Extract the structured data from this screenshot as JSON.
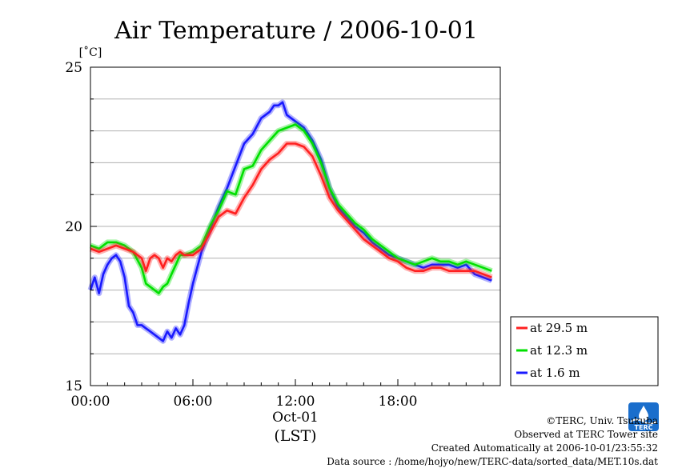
{
  "chart_data": {
    "type": "line",
    "title": "Air Temperature / 2006-10-01",
    "ylabel": "[˚C]",
    "xlabel": "(LST)",
    "date_label": "Oct-01",
    "ylim": [
      15,
      25
    ],
    "xlim_hours": [
      0,
      24
    ],
    "y_ticks": [
      "15",
      "20",
      "25"
    ],
    "x_ticks": [
      {
        "hour": 0,
        "label": "00:00"
      },
      {
        "hour": 6,
        "label": "06:00"
      },
      {
        "hour": 12,
        "label": "12:00"
      },
      {
        "hour": 18,
        "label": "18:00"
      }
    ],
    "grid": true,
    "legend_position": "right-bottom",
    "series": [
      {
        "name": "at 29.5 m",
        "color": "#ff2020",
        "x": [
          0.0,
          0.5,
          1.0,
          1.5,
          2.0,
          2.5,
          3.0,
          3.25,
          3.5,
          3.75,
          4.0,
          4.25,
          4.5,
          4.75,
          5.0,
          5.25,
          5.5,
          6.0,
          6.5,
          7.0,
          7.5,
          8.0,
          8.5,
          9.0,
          9.5,
          10.0,
          10.5,
          11.0,
          11.5,
          12.0,
          12.5,
          13.0,
          13.5,
          14.0,
          14.5,
          15.0,
          15.5,
          16.0,
          16.5,
          17.0,
          17.5,
          18.0,
          18.5,
          19.0,
          19.5,
          20.0,
          20.5,
          21.0,
          21.5,
          22.0,
          22.5,
          23.0,
          23.5
        ],
        "y": [
          19.3,
          19.2,
          19.3,
          19.4,
          19.3,
          19.2,
          19.0,
          18.6,
          19.0,
          19.1,
          19.0,
          18.7,
          19.0,
          18.9,
          19.1,
          19.2,
          19.1,
          19.1,
          19.3,
          19.8,
          20.3,
          20.5,
          20.4,
          20.9,
          21.3,
          21.8,
          22.1,
          22.3,
          22.6,
          22.6,
          22.5,
          22.2,
          21.6,
          20.9,
          20.5,
          20.2,
          19.9,
          19.6,
          19.4,
          19.2,
          19.0,
          18.9,
          18.7,
          18.6,
          18.6,
          18.7,
          18.7,
          18.6,
          18.6,
          18.6,
          18.6,
          18.5,
          18.4
        ]
      },
      {
        "name": "at 12.3 m",
        "color": "#00e000",
        "x": [
          0.0,
          0.5,
          1.0,
          1.5,
          2.0,
          2.5,
          3.0,
          3.25,
          3.5,
          3.75,
          4.0,
          4.25,
          4.5,
          4.75,
          5.0,
          5.25,
          5.5,
          6.0,
          6.5,
          7.0,
          7.5,
          8.0,
          8.5,
          9.0,
          9.5,
          10.0,
          10.5,
          11.0,
          11.5,
          12.0,
          12.5,
          13.0,
          13.5,
          14.0,
          14.5,
          15.0,
          15.5,
          16.0,
          16.5,
          17.0,
          17.5,
          18.0,
          18.5,
          19.0,
          19.5,
          20.0,
          20.5,
          21.0,
          21.5,
          22.0,
          22.5,
          23.0,
          23.5
        ],
        "y": [
          19.4,
          19.3,
          19.5,
          19.5,
          19.4,
          19.2,
          18.7,
          18.2,
          18.1,
          18.0,
          17.9,
          18.1,
          18.2,
          18.5,
          18.8,
          19.1,
          19.1,
          19.2,
          19.4,
          20.0,
          20.5,
          21.1,
          21.0,
          21.8,
          21.9,
          22.4,
          22.7,
          23.0,
          23.1,
          23.2,
          23.0,
          22.6,
          22.0,
          21.2,
          20.7,
          20.4,
          20.1,
          19.9,
          19.6,
          19.4,
          19.2,
          19.0,
          18.9,
          18.8,
          18.9,
          19.0,
          18.9,
          18.9,
          18.8,
          18.9,
          18.8,
          18.7,
          18.6
        ]
      },
      {
        "name": "at 1.6 m",
        "color": "#1a1aff",
        "x": [
          0.0,
          0.25,
          0.5,
          0.75,
          1.0,
          1.25,
          1.5,
          1.75,
          2.0,
          2.25,
          2.5,
          2.75,
          3.0,
          3.25,
          3.5,
          3.75,
          4.0,
          4.25,
          4.5,
          4.75,
          5.0,
          5.25,
          5.5,
          5.75,
          6.0,
          6.25,
          6.5,
          7.0,
          7.5,
          8.0,
          8.5,
          9.0,
          9.5,
          10.0,
          10.25,
          10.5,
          10.75,
          11.0,
          11.25,
          11.5,
          12.0,
          12.5,
          13.0,
          13.5,
          14.0,
          14.5,
          15.0,
          15.5,
          16.0,
          16.5,
          17.0,
          17.5,
          18.0,
          18.5,
          19.0,
          19.5,
          20.0,
          20.5,
          21.0,
          21.5,
          22.0,
          22.5,
          23.0,
          23.5
        ],
        "y": [
          18.0,
          18.4,
          17.9,
          18.5,
          18.8,
          19.0,
          19.1,
          18.9,
          18.4,
          17.5,
          17.3,
          16.9,
          16.9,
          16.8,
          16.7,
          16.6,
          16.5,
          16.4,
          16.7,
          16.5,
          16.8,
          16.6,
          16.9,
          17.6,
          18.2,
          18.7,
          19.2,
          19.9,
          20.6,
          21.2,
          21.9,
          22.6,
          22.9,
          23.4,
          23.5,
          23.6,
          23.8,
          23.8,
          23.9,
          23.5,
          23.3,
          23.1,
          22.7,
          22.1,
          21.2,
          20.6,
          20.3,
          20.0,
          19.8,
          19.5,
          19.3,
          19.1,
          19.0,
          18.9,
          18.8,
          18.7,
          18.8,
          18.8,
          18.8,
          18.7,
          18.8,
          18.5,
          18.4,
          18.3
        ]
      }
    ]
  },
  "footer": {
    "copyright": "©TERC, Univ. Tsukuba",
    "observed": "Observed at TERC Tower site",
    "created": "Created Automatically at 2006-10-01/23:55:32",
    "source": "Data source : /home/hojyo/new/TERC-data/sorted_data/MET.10s.dat"
  },
  "logo": {
    "name": "terc-logo-icon",
    "text": "TERC",
    "color": "#1a6ecc"
  }
}
